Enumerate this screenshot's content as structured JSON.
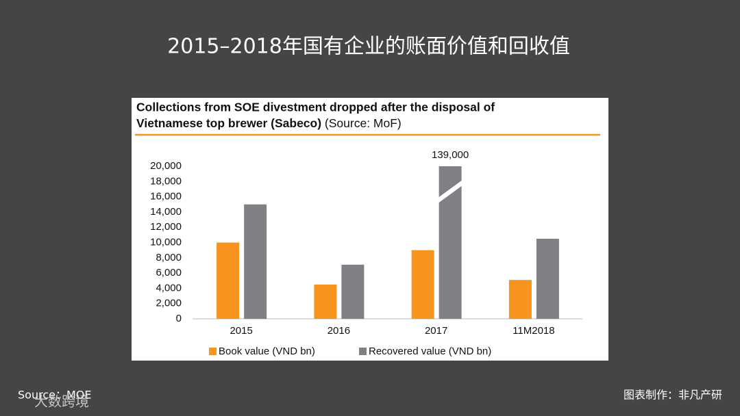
{
  "slide_title": "2015–2018年国有企业的账面价值和回收值",
  "chart_data": {
    "type": "bar",
    "title": [
      "Collections from SOE divestment dropped after the disposal of",
      "Vietnamese top brewer (Sabeco)"
    ],
    "source": "(Source: MoF)",
    "categories": [
      "2015",
      "2016",
      "2017",
      "11M2018"
    ],
    "series": [
      {
        "name": "Book value (VND bn)",
        "color": "#f7941d",
        "values": [
          10000,
          4500,
          9000,
          5100
        ]
      },
      {
        "name": "Recovered value (VND bn)",
        "color": "#808084",
        "values": [
          15000,
          7100,
          139000,
          10500
        ],
        "value_labels": [
          null,
          null,
          "139,000",
          null
        ]
      }
    ],
    "ylim": [
      0,
      20000
    ],
    "yticks": [
      0,
      {
        "value": 2000,
        "label": "2,000"
      },
      {
        "value": 4000,
        "label": "4,000"
      },
      {
        "value": 6000,
        "label": "6,000"
      },
      {
        "value": 8000,
        "label": "8,000"
      },
      {
        "value": 10000,
        "label": "10,000"
      },
      {
        "value": 12000,
        "label": "12,000"
      },
      {
        "value": 14000,
        "label": "14,000"
      },
      {
        "value": 16000,
        "label": "16,000"
      },
      {
        "value": 18000,
        "label": "18,000"
      },
      {
        "value": 20000,
        "label": "20,000"
      }
    ],
    "grid": false,
    "legend": "bottom"
  },
  "footer": {
    "source": "Source：MOE",
    "watermark": "大数跨境",
    "credit": "图表制作：非凡产研"
  }
}
